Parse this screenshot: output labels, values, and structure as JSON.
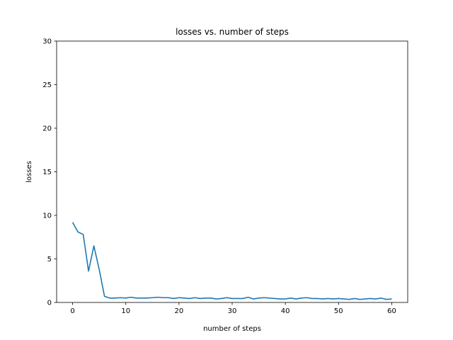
{
  "chart_data": {
    "type": "line",
    "title": "losses vs. number of steps",
    "xlabel": "number of steps",
    "ylabel": "losses",
    "xlim": [
      -3,
      63
    ],
    "ylim": [
      0,
      30
    ],
    "xticks": [
      0,
      10,
      20,
      30,
      40,
      50,
      60
    ],
    "yticks": [
      0,
      5,
      10,
      15,
      20,
      25,
      30
    ],
    "grid": false,
    "line_color": "#1f77b4",
    "series": [
      {
        "x": [
          0,
          1,
          2,
          3,
          4,
          5,
          6,
          7,
          8,
          9,
          10,
          11,
          12,
          13,
          14,
          15,
          16,
          17,
          18,
          19,
          20,
          21,
          22,
          23,
          24,
          25,
          26,
          27,
          28,
          29,
          30,
          31,
          32,
          33,
          34,
          35,
          36,
          37,
          38,
          39,
          40,
          41,
          42,
          43,
          44,
          45,
          46,
          47,
          48,
          49,
          50,
          51,
          52,
          53,
          54,
          55,
          56,
          57,
          58,
          59,
          60
        ],
        "values": [
          9.2,
          8.1,
          7.8,
          3.6,
          6.5,
          3.8,
          0.7,
          0.5,
          0.5,
          0.55,
          0.5,
          0.6,
          0.5,
          0.5,
          0.5,
          0.55,
          0.6,
          0.55,
          0.55,
          0.45,
          0.55,
          0.5,
          0.45,
          0.55,
          0.45,
          0.5,
          0.5,
          0.4,
          0.45,
          0.55,
          0.45,
          0.45,
          0.45,
          0.6,
          0.4,
          0.5,
          0.55,
          0.5,
          0.45,
          0.4,
          0.4,
          0.5,
          0.4,
          0.5,
          0.55,
          0.45,
          0.45,
          0.4,
          0.45,
          0.4,
          0.45,
          0.4,
          0.35,
          0.45,
          0.35,
          0.4,
          0.45,
          0.4,
          0.5,
          0.35,
          0.4
        ]
      }
    ]
  }
}
